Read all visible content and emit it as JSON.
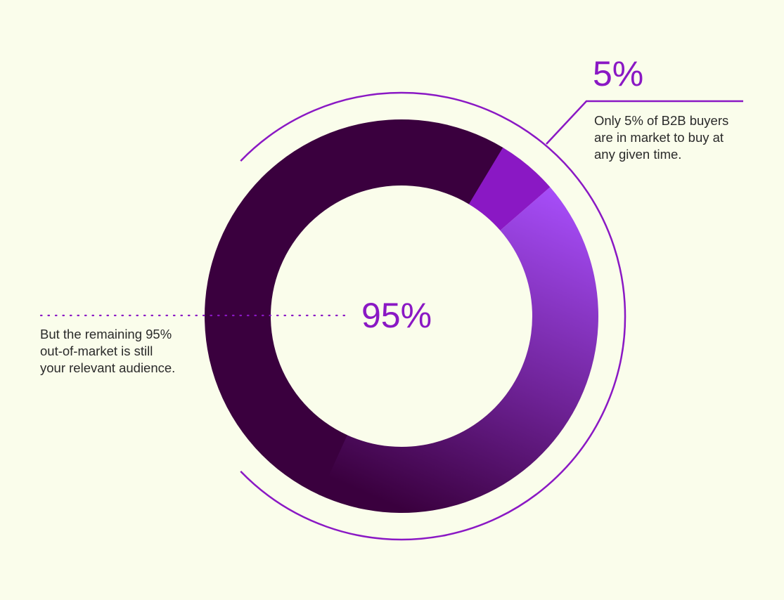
{
  "chart_data": {
    "type": "pie",
    "title": "",
    "slices": [
      {
        "label": "In market",
        "value": 5,
        "color": "#8a18c4"
      },
      {
        "label": "Out of market",
        "value": 95,
        "color": "#3a003e"
      }
    ],
    "highlight_gradient": [
      "#a64df8",
      "#3a003e"
    ]
  },
  "callouts": {
    "small": {
      "value": "5%",
      "lines": [
        "Only 5% of B2B buyers",
        "are in market to buy at",
        "any given time."
      ]
    },
    "large": {
      "value": "95%",
      "lines": [
        "But the remaining 95%",
        "out-of-market is still",
        "your relevant audience."
      ]
    }
  },
  "colors": {
    "background": "#fafdeb",
    "accent": "#8a18c4",
    "text": "#2a2a2a"
  }
}
